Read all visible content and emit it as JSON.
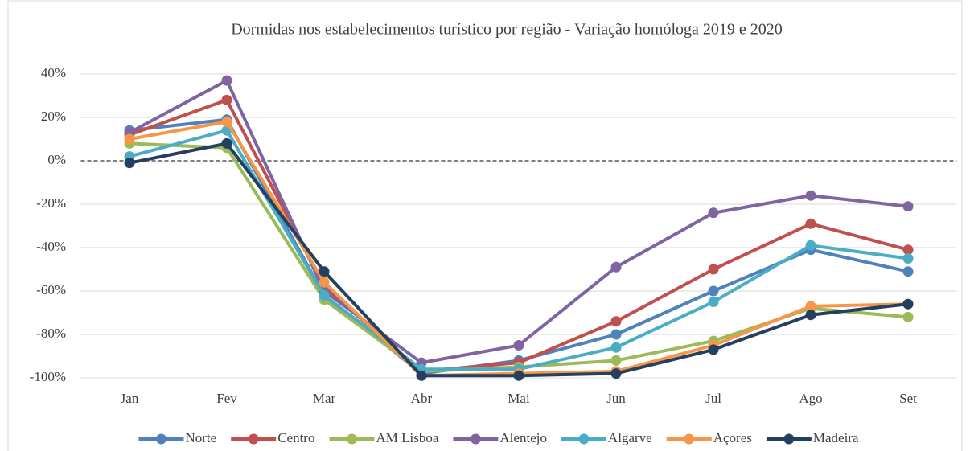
{
  "chart_data": {
    "type": "line",
    "title": "Dormidas nos estabelecimentos turístico por região - Variação homóloga 2019 e 2020",
    "categories": [
      "Jan",
      "Fev",
      "Mar",
      "Abr",
      "Mai",
      "Jun",
      "Jul",
      "Ago",
      "Set"
    ],
    "series": [
      {
        "name": "Norte",
        "color": "#4f81bd",
        "values": [
          14,
          19,
          -62,
          -98,
          -92,
          -80,
          -60,
          -41,
          -51
        ]
      },
      {
        "name": "Centro",
        "color": "#c0504d",
        "values": [
          12,
          28,
          -58,
          -97,
          -93,
          -74,
          -50,
          -29,
          -41
        ]
      },
      {
        "name": "AM  Lisboa",
        "color": "#9bbb59",
        "values": [
          8,
          6,
          -64,
          -97,
          -95,
          -92,
          -83,
          -68,
          -72
        ]
      },
      {
        "name": "Alentejo",
        "color": "#8064a2",
        "values": [
          13,
          37,
          -60,
          -93,
          -85,
          -49,
          -24,
          -16,
          -21
        ]
      },
      {
        "name": "Algarve",
        "color": "#4bacc6",
        "values": [
          2,
          14,
          -62,
          -96,
          -96,
          -86,
          -65,
          -39,
          -45
        ]
      },
      {
        "name": "Açores",
        "color": "#f79646",
        "values": [
          10,
          18,
          -56,
          -99,
          -98,
          -97,
          -85,
          -67,
          -66
        ]
      },
      {
        "name": "Madeira",
        "color": "#243f60",
        "values": [
          -1,
          8,
          -51,
          -99,
          -99,
          -98,
          -87,
          -71,
          -66
        ]
      }
    ],
    "ylim": [
      -100,
      40
    ],
    "yticks": [
      {
        "value": -100,
        "label": "-100%"
      },
      {
        "value": -80,
        "label": "-80%"
      },
      {
        "value": -60,
        "label": "-60%"
      },
      {
        "value": -40,
        "label": "-40%"
      },
      {
        "value": -20,
        "label": "-20%"
      },
      {
        "value": 0,
        "label": "0%"
      },
      {
        "value": 20,
        "label": "20%"
      },
      {
        "value": 40,
        "label": "40%"
      }
    ],
    "grid": true,
    "legend": "bottom"
  }
}
